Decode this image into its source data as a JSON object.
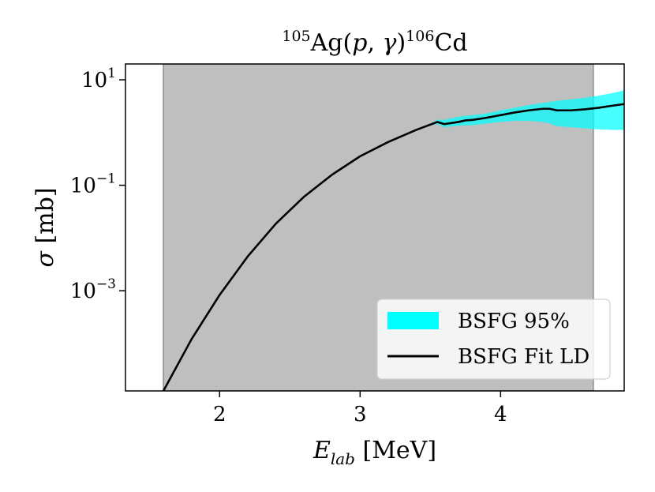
{
  "chart_data": {
    "type": "line",
    "title": {
      "pre_sup": "105",
      "main": "Ag(",
      "p": "p",
      "comma": ", ",
      "gamma": "γ",
      "close": ")",
      "post_sup": "106",
      "post": "Cd"
    },
    "xlabel": {
      "var": "E",
      "sub": "lab",
      "unit": " [MeV]"
    },
    "ylabel": {
      "var": "σ",
      "unit": " [mb]"
    },
    "xlim": [
      1.33,
      4.88
    ],
    "ylim_log10": [
      -4.9,
      1.3
    ],
    "y_scale": "log",
    "x_ticks": [
      {
        "value": 2,
        "label": "2"
      },
      {
        "value": 3,
        "label": "3"
      },
      {
        "value": 4,
        "label": "4"
      }
    ],
    "y_ticks": [
      {
        "exp": 1,
        "base": "10",
        "sup": "1"
      },
      {
        "exp": -1,
        "base": "10",
        "sup": "−1"
      },
      {
        "exp": -3,
        "base": "10",
        "sup": "−3"
      }
    ],
    "shaded_region": {
      "x": [
        1.6,
        4.66
      ],
      "color": "#bfbfbf"
    },
    "series": [
      {
        "name": "BSFG Fit LD",
        "kind": "line",
        "color": "#000000",
        "x": [
          1.6,
          1.8,
          2.0,
          2.2,
          2.4,
          2.6,
          2.8,
          3.0,
          3.2,
          3.4,
          3.55,
          3.6,
          3.7,
          3.75,
          3.8,
          3.9,
          4.0,
          4.1,
          4.2,
          4.3,
          4.35,
          4.4,
          4.5,
          4.6,
          4.7,
          4.8,
          4.88
        ],
        "log10_y": [
          -4.9,
          -3.92,
          -3.08,
          -2.35,
          -1.73,
          -1.22,
          -0.8,
          -0.45,
          -0.18,
          0.05,
          0.2,
          0.16,
          0.2,
          0.23,
          0.24,
          0.28,
          0.33,
          0.38,
          0.42,
          0.45,
          0.45,
          0.42,
          0.42,
          0.44,
          0.47,
          0.51,
          0.54
        ]
      },
      {
        "name": "BSFG 95%",
        "kind": "band",
        "color": "#00ffff",
        "x": [
          3.5,
          3.55,
          3.6,
          3.7,
          3.8,
          3.9,
          4.0,
          4.1,
          4.2,
          4.3,
          4.35,
          4.4,
          4.5,
          4.6,
          4.7,
          4.8,
          4.88
        ],
        "log10_lower": [
          0.14,
          0.16,
          0.1,
          0.13,
          0.14,
          0.17,
          0.2,
          0.22,
          0.22,
          0.2,
          0.17,
          0.12,
          0.1,
          0.08,
          0.06,
          0.05,
          0.05
        ],
        "log10_upper": [
          0.17,
          0.24,
          0.24,
          0.3,
          0.33,
          0.36,
          0.42,
          0.47,
          0.52,
          0.56,
          0.58,
          0.6,
          0.63,
          0.66,
          0.7,
          0.75,
          0.8
        ]
      }
    ],
    "legend": {
      "position": "bottom-right",
      "entries": [
        {
          "label": "BSFG 95%",
          "kind": "band",
          "color": "#00ffff"
        },
        {
          "label": "BSFG Fit LD",
          "kind": "line",
          "color": "#000000"
        }
      ]
    },
    "grid": false
  }
}
